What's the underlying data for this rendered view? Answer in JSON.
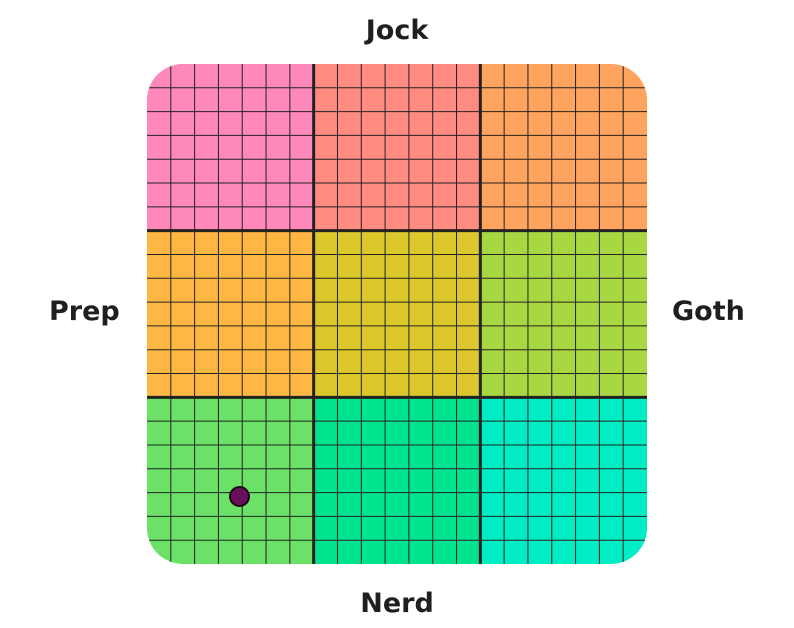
{
  "labels": {
    "top": "Jock",
    "bottom": "Nerd",
    "left": "Prep",
    "right": "Goth"
  },
  "grid": {
    "cols": 21,
    "rows": 21,
    "major_every": 7
  },
  "regions": [
    {
      "color": "#ff88bb"
    },
    {
      "color": "#ff8b81"
    },
    {
      "color": "#ffa45f"
    },
    {
      "color": "#ffb743"
    },
    {
      "color": "#dcc82c"
    },
    {
      "color": "#a8d841"
    },
    {
      "color": "#6be168"
    },
    {
      "color": "#00e48f"
    },
    {
      "color": "#00ecc5"
    }
  ],
  "marker": {
    "x": -6.3,
    "y": -7.3,
    "x_range": [
      -10,
      10
    ],
    "y_range": [
      -10,
      10
    ],
    "color": "#6a0f5c"
  },
  "colors": {
    "major_line": "#222222",
    "minor_line": "#222222"
  }
}
